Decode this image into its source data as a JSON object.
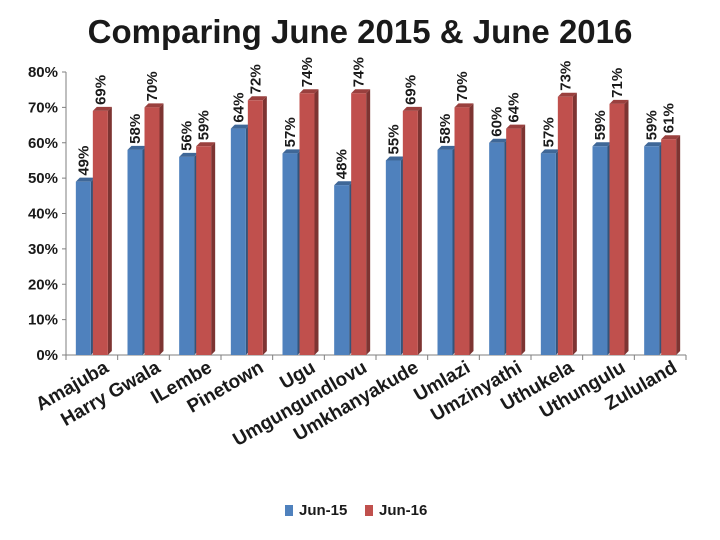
{
  "chart_data": {
    "type": "bar",
    "title": "Comparing June 2015  & June 2016",
    "categories": [
      "Amajuba",
      "Harry Gwala",
      "ILembe",
      "Pinetown",
      "Ugu",
      "Umgungundlovu",
      "Umkhanyakude",
      "Umlazi",
      "Umzinyathi",
      "Uthukela",
      "Uthungulu",
      "Zululand"
    ],
    "series": [
      {
        "name": "Jun-15",
        "color": "#4f81bd",
        "values": [
          49,
          58,
          56,
          64,
          57,
          48,
          55,
          58,
          60,
          57,
          59,
          59
        ],
        "labels": [
          "49%",
          "58%",
          "56%",
          "64%",
          "57%",
          "48%",
          "55%",
          "58%",
          "60%",
          "57%",
          "59%",
          "59%"
        ]
      },
      {
        "name": "Jun-16",
        "color": "#c0504d",
        "values": [
          69,
          70,
          59,
          72,
          74,
          74,
          69,
          70,
          64,
          73,
          71,
          61
        ],
        "labels": [
          "69%",
          "70%",
          "59%",
          "72%",
          "74%",
          "74%",
          "69%",
          "70%",
          "64%",
          "73%",
          "71%",
          "61%"
        ]
      }
    ],
    "y_ticks": [
      "0%",
      "10%",
      "20%",
      "30%",
      "40%",
      "50%",
      "60%",
      "70%",
      "80%"
    ],
    "ylim": [
      0,
      80
    ],
    "grid": false,
    "legend_position": "bottom"
  }
}
